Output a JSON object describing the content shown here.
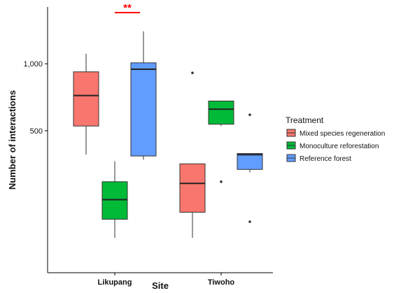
{
  "chart_data": {
    "type": "boxplot",
    "xlabel": "Site",
    "ylabel": "Number of interactions",
    "y_scale": "log",
    "ylim": [
      115,
      1800
    ],
    "yticks": [
      500,
      1000
    ],
    "ytick_labels": [
      "500",
      "1,000"
    ],
    "categories": [
      "Likupang",
      "Tiwoho"
    ],
    "legend": {
      "title": "Treatment",
      "position": "right",
      "entries": [
        "Mixed species regeneration",
        "Monoculture reforestation",
        "Reference forest"
      ]
    },
    "series": [
      {
        "name": "Mixed species regeneration",
        "color": "#F8766D",
        "boxes": [
          {
            "category": "Likupang",
            "whisker_low": 390,
            "q1": 525,
            "median": 720,
            "q3": 920,
            "whisker_high": 1110,
            "outliers": []
          },
          {
            "category": "Tiwoho",
            "whisker_low": 165,
            "q1": 215,
            "median": 290,
            "q3": 355,
            "whisker_high": 355,
            "outliers": [
              910
            ]
          }
        ]
      },
      {
        "name": "Monoculture reforestation",
        "color": "#00BA38",
        "boxes": [
          {
            "category": "Likupang",
            "whisker_low": 165,
            "q1": 200,
            "median": 245,
            "q3": 295,
            "whisker_high": 365,
            "outliers": []
          },
          {
            "category": "Tiwoho",
            "whisker_low": 525,
            "q1": 535,
            "median": 625,
            "q3": 680,
            "whisker_high": 680,
            "outliers": [
              295
            ]
          }
        ]
      },
      {
        "name": "Reference forest",
        "color": "#619CFF",
        "boxes": [
          {
            "category": "Likupang",
            "whisker_low": 370,
            "q1": 385,
            "median": 945,
            "q3": 1010,
            "whisker_high": 1400,
            "outliers": []
          },
          {
            "category": "Tiwoho",
            "whisker_low": 325,
            "q1": 335,
            "median": 390,
            "q3": 395,
            "whisker_high": 395,
            "outliers": [
              590,
              195
            ]
          }
        ]
      }
    ],
    "annotations": [
      {
        "text": "**",
        "category": "Likupang",
        "color": "#FF0000"
      }
    ]
  }
}
